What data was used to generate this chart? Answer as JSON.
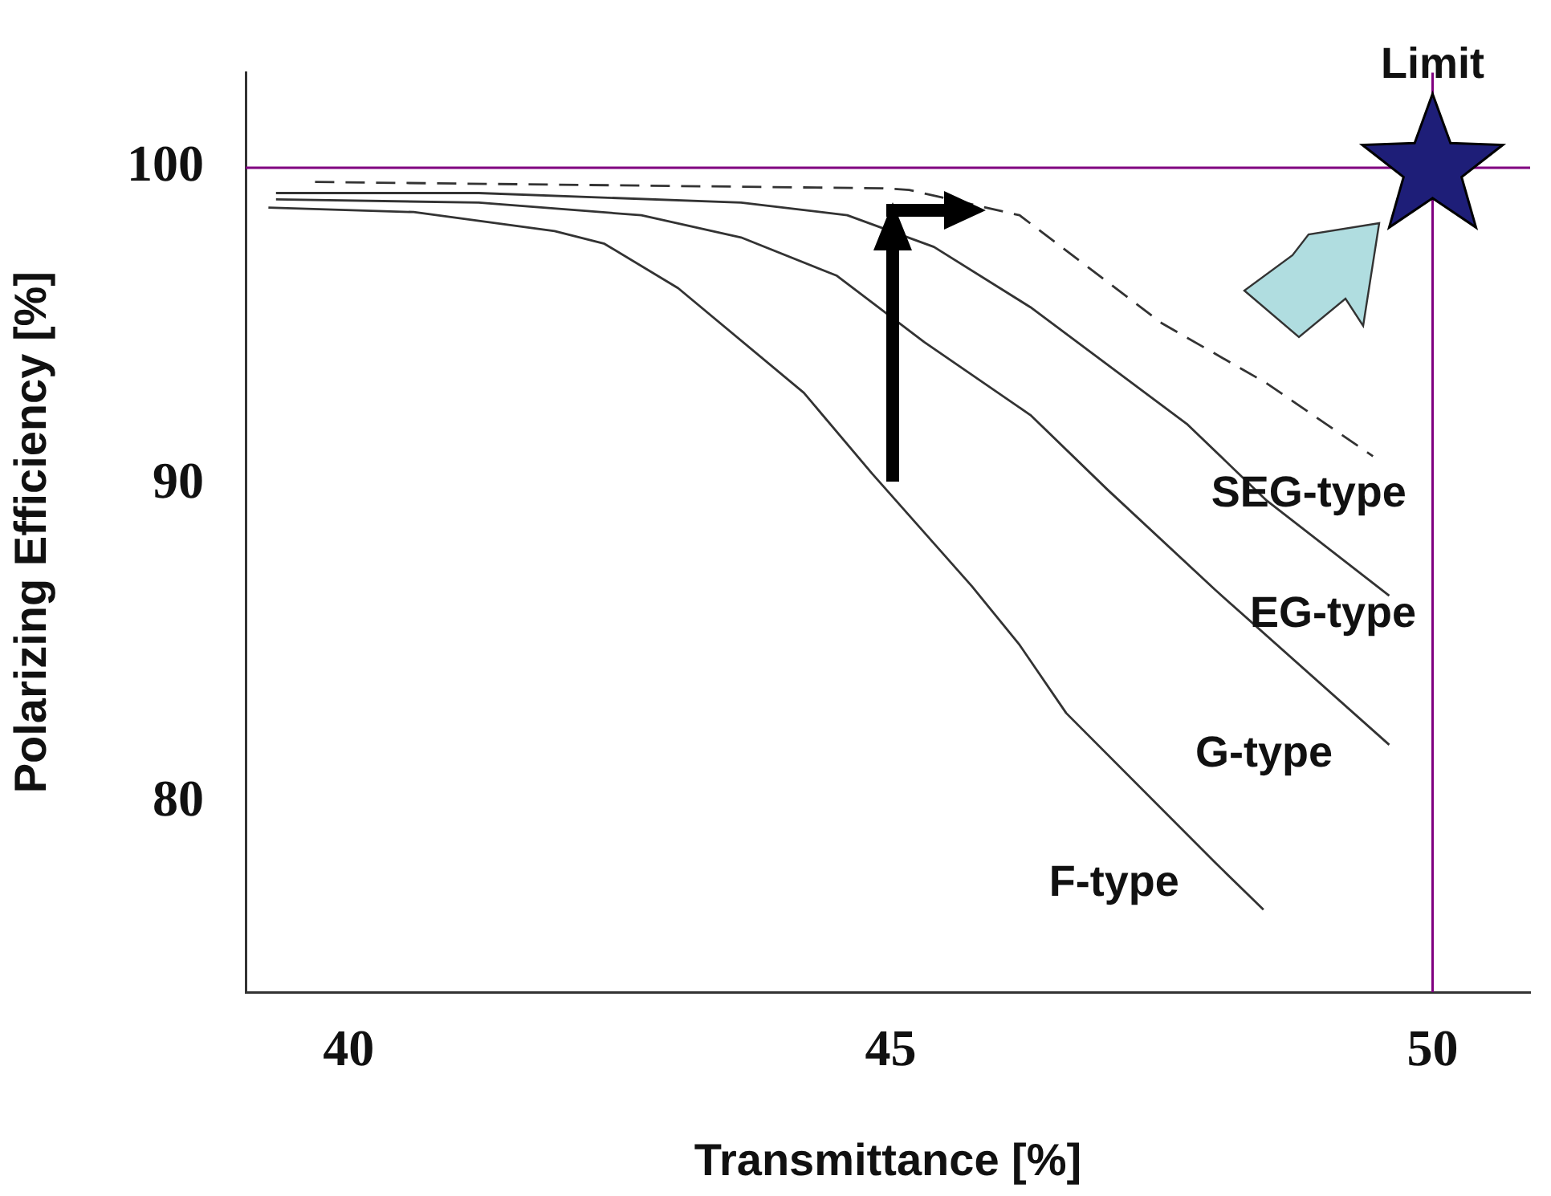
{
  "chart_data": {
    "type": "line",
    "xlabel": "Transmittance [%]",
    "ylabel": "Polarizing Efficiency [%]",
    "xlim": [
      39.05,
      50.9
    ],
    "ylim": [
      74,
      103
    ],
    "xticks": [
      40,
      45,
      50
    ],
    "yticks": [
      80,
      90,
      100
    ],
    "grid": false,
    "legend": false,
    "marker": "none",
    "series": [
      {
        "name": "SEG-type",
        "color": "#333333",
        "line_style": "dashed",
        "x": [
          39.69,
          44.93,
          45.17,
          46.19,
          47.5,
          48.47,
          49.45
        ],
        "values": [
          99.55,
          99.35,
          99.3,
          98.5,
          95.1,
          93.2,
          90.9
        ]
      },
      {
        "name": "EG-type",
        "color": "#333333",
        "line_style": "solid",
        "x": [
          39.33,
          41.2,
          43.62,
          44.6,
          45.4,
          46.29,
          47.74,
          48.47,
          49.6
        ],
        "values": [
          99.2,
          99.2,
          98.9,
          98.5,
          97.5,
          95.6,
          91.9,
          89.5,
          86.5
        ]
      },
      {
        "name": "G-type",
        "color": "#333333",
        "line_style": "solid",
        "x": [
          39.33,
          41.2,
          42.7,
          43.62,
          44.5,
          45.31,
          46.29,
          47.0,
          47.99,
          49.6
        ],
        "values": [
          99.0,
          98.9,
          98.5,
          97.8,
          96.6,
          94.5,
          92.2,
          89.85,
          86.7,
          81.8
        ]
      },
      {
        "name": "F-type",
        "color": "#333333",
        "line_style": "solid",
        "x": [
          39.26,
          40.6,
          41.9,
          42.36,
          43.04,
          44.2,
          44.83,
          45.75,
          46.19,
          46.62,
          47.99,
          48.44
        ],
        "values": [
          98.74,
          98.6,
          98.0,
          97.6,
          96.2,
          92.9,
          90.35,
          86.8,
          84.95,
          82.8,
          78.1,
          76.6
        ]
      },
      {
        "type": "scatter",
        "marker": "star",
        "color": "#1e1e78",
        "x": [
          50
        ],
        "values": [
          100
        ]
      }
    ],
    "ref_lines": [
      {
        "axis": "y",
        "value": 100,
        "color": "#800080"
      },
      {
        "axis": "x",
        "value": 50,
        "color": "#800080"
      }
    ],
    "annotations": [
      {
        "text": "Limit",
        "x": 50,
        "y": 100
      }
    ]
  }
}
